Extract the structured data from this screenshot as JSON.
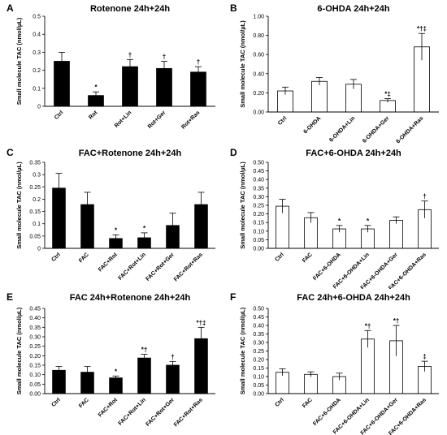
{
  "figure": {
    "ylabel": "Small molecule TAC (nmol/µL)"
  },
  "chart_data": [
    {
      "type": "bar",
      "panel_letter": "A",
      "title": "Rotenone 24h+24h",
      "fill": "#000000",
      "xlabel": "",
      "ylabel": "Small molecule TAC (nmol/µL)",
      "ylim": [
        0,
        0.5
      ],
      "yticks": [
        "0",
        "0.1",
        "0.2",
        "0.3",
        "0.4",
        "0.5"
      ],
      "categories": [
        "Ctrl",
        "Rot",
        "Rot+Lin",
        "Rot+Ger",
        "Rot+Ras"
      ],
      "values": [
        0.25,
        0.06,
        0.22,
        0.21,
        0.19
      ],
      "errors": [
        0.05,
        0.02,
        0.04,
        0.04,
        0.03
      ],
      "annotations": [
        "",
        "*",
        "†",
        "†",
        "†"
      ]
    },
    {
      "type": "bar",
      "panel_letter": "B",
      "title": "6-OHDA 24h+24h",
      "fill": "#ffffff",
      "xlabel": "",
      "ylabel": "Small molecule TAC (nmol/µL)",
      "ylim": [
        0,
        1.0
      ],
      "yticks": [
        "0.00",
        "0.20",
        "0.40",
        "0.60",
        "0.80",
        "1.00"
      ],
      "categories": [
        "Ctrl",
        "6-OHDA",
        "6-OHDA+Lin",
        "6-OHDA+Ger",
        "6-OHDA+Ras"
      ],
      "values": [
        0.22,
        0.32,
        0.29,
        0.12,
        0.68
      ],
      "errors": [
        0.04,
        0.04,
        0.05,
        0.02,
        0.14
      ],
      "annotations": [
        "",
        "",
        "",
        "*‡",
        "*†‡"
      ]
    },
    {
      "type": "bar",
      "panel_letter": "C",
      "title": "FAC+Rotenone 24h+24h",
      "fill": "#000000",
      "xlabel": "",
      "ylabel": "Small molecule TAC (nmol/µL)",
      "ylim": [
        0,
        0.35
      ],
      "yticks": [
        "0",
        "0.05",
        "0.1",
        "0.15",
        "0.2",
        "0.25",
        "0.3",
        "0.35"
      ],
      "categories": [
        "Ctrl",
        "FAC",
        "FAC+Rot",
        "FAC+Rot+Lin",
        "FAC+Rot+Ger",
        "FAC+Rot+Ras"
      ],
      "values": [
        0.245,
        0.178,
        0.04,
        0.043,
        0.093,
        0.178
      ],
      "errors": [
        0.06,
        0.05,
        0.015,
        0.02,
        0.05,
        0.05
      ],
      "annotations": [
        "",
        "",
        "*",
        "*",
        "",
        ""
      ]
    },
    {
      "type": "bar",
      "panel_letter": "D",
      "title": "FAC+6-OHDA 24h+24h",
      "fill": "#ffffff",
      "xlabel": "",
      "ylabel": "Small molecule TAC (nmol/µL)",
      "ylim": [
        0,
        0.5
      ],
      "yticks": [
        "0.00",
        "0.05",
        "0.10",
        "0.15",
        "0.20",
        "0.25",
        "0.30",
        "0.35",
        "0.40",
        "0.45",
        "0.50"
      ],
      "categories": [
        "Ctrl",
        "FAC",
        "FAC+6-OHDA",
        "FAC+6-OHDA+Lin",
        "FAC+6-OHDA+Ger",
        "FAC+6-OHDA+Ras"
      ],
      "values": [
        0.245,
        0.178,
        0.113,
        0.113,
        0.163,
        0.225
      ],
      "errors": [
        0.04,
        0.03,
        0.02,
        0.02,
        0.02,
        0.05
      ],
      "annotations": [
        "",
        "",
        "*",
        "*",
        "",
        "†"
      ]
    },
    {
      "type": "bar",
      "panel_letter": "E",
      "title": "FAC 24h+Rotenone 24h+24h",
      "fill": "#000000",
      "xlabel": "",
      "ylabel": "Small molecule TAC (nmol/µL)",
      "ylim": [
        0,
        0.45
      ],
      "yticks": [
        "0.00",
        "0.05",
        "0.10",
        "0.15",
        "0.20",
        "0.25",
        "0.30",
        "0.35",
        "0.40",
        "0.45"
      ],
      "categories": [
        "Ctrl",
        "FAC",
        "FAC+Rot",
        "FAC+Rot+Lin",
        "FAC+Rot+Ger",
        "FAC+Rot+Ras"
      ],
      "values": [
        0.123,
        0.113,
        0.083,
        0.188,
        0.15,
        0.29
      ],
      "errors": [
        0.02,
        0.03,
        0.01,
        0.02,
        0.02,
        0.06
      ],
      "annotations": [
        "",
        "",
        "*",
        "*†",
        "†",
        "*†‡"
      ]
    },
    {
      "type": "bar",
      "panel_letter": "F",
      "title": "FAC 24h+6-OHDA 24h+24h",
      "fill": "#ffffff",
      "xlabel": "",
      "ylabel": "Small molecule TAC (nmol/µL)",
      "ylim": [
        0,
        0.5
      ],
      "yticks": [
        "0.00",
        "0.05",
        "0.10",
        "0.15",
        "0.20",
        "0.25",
        "0.30",
        "0.35",
        "0.40",
        "0.45",
        "0.50"
      ],
      "categories": [
        "Ctrl",
        "FAC",
        "FAC+6-OHDA",
        "FAC+6-OHDA+Lin",
        "FAC+6-OHDA+Ger",
        "FAC+6-OHDA+Ras"
      ],
      "values": [
        0.125,
        0.113,
        0.1,
        0.32,
        0.31,
        0.16
      ],
      "errors": [
        0.02,
        0.015,
        0.02,
        0.05,
        0.09,
        0.03
      ],
      "annotations": [
        "",
        "",
        "",
        "*†",
        "*†",
        "‡"
      ]
    }
  ]
}
